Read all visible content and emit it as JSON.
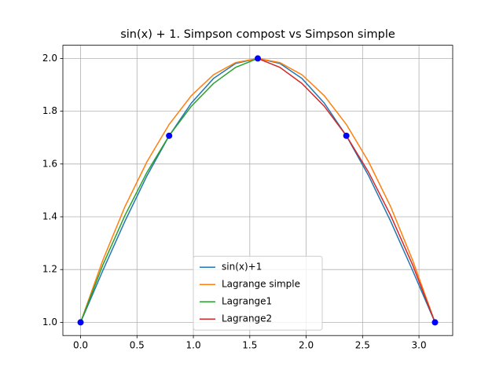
{
  "chart_data": {
    "type": "line",
    "title": "sin(x) + 1. Simpson compost vs Simpson simple",
    "xlim": [
      -0.157,
      3.299
    ],
    "ylim": [
      0.95,
      2.05
    ],
    "xticks": [
      {
        "value": 0,
        "label": "0.0"
      },
      {
        "value": 0.5,
        "label": "0.5"
      },
      {
        "value": 1,
        "label": "1.0"
      },
      {
        "value": 1.5,
        "label": "1.5"
      },
      {
        "value": 2,
        "label": "2.0"
      },
      {
        "value": 2.5,
        "label": "2.5"
      },
      {
        "value": 3,
        "label": "3.0"
      }
    ],
    "yticks": [
      {
        "value": 1,
        "label": "1.0"
      },
      {
        "value": 1.2,
        "label": "1.2"
      },
      {
        "value": 1.4,
        "label": "1.4"
      },
      {
        "value": 1.6,
        "label": "1.6"
      },
      {
        "value": 1.8,
        "label": "1.8"
      },
      {
        "value": 2,
        "label": "2.0"
      }
    ],
    "grid": true,
    "legend": "lower center",
    "series": [
      {
        "name": "sin(x)+1",
        "color": "#1f77b4",
        "x": [
          0,
          0.196,
          0.393,
          0.589,
          0.785,
          0.982,
          1.178,
          1.374,
          1.571,
          1.767,
          1.963,
          2.16,
          2.356,
          2.553,
          2.749,
          2.945,
          3.142
        ],
        "values": [
          1,
          1.195,
          1.383,
          1.556,
          1.707,
          1.831,
          1.924,
          1.981,
          2,
          1.981,
          1.924,
          1.831,
          1.707,
          1.556,
          1.383,
          1.195,
          1
        ]
      },
      {
        "name": "Lagrange simple",
        "color": "#ff7f0e",
        "x": [
          0,
          0.196,
          0.393,
          0.589,
          0.785,
          0.982,
          1.178,
          1.374,
          1.571,
          1.767,
          1.963,
          2.16,
          2.356,
          2.553,
          2.749,
          2.945,
          3.142
        ],
        "values": [
          1,
          1.234,
          1.438,
          1.609,
          1.75,
          1.859,
          1.938,
          1.984,
          2,
          1.984,
          1.938,
          1.859,
          1.75,
          1.609,
          1.438,
          1.234,
          1
        ]
      },
      {
        "name": "Lagrange1",
        "color": "#2ca02c",
        "x": [
          0,
          0.196,
          0.393,
          0.589,
          0.785,
          0.982,
          1.178,
          1.374,
          1.571
        ],
        "values": [
          1,
          1.216,
          1.405,
          1.569,
          1.707,
          1.819,
          1.905,
          1.966,
          2
        ]
      },
      {
        "name": "Lagrange2",
        "color": "#d62728",
        "x": [
          1.571,
          1.767,
          1.963,
          2.16,
          2.356,
          2.553,
          2.749,
          2.945,
          3.142
        ],
        "values": [
          2,
          1.966,
          1.905,
          1.819,
          1.707,
          1.569,
          1.405,
          1.216,
          1
        ]
      }
    ],
    "points": {
      "color": "#0000ff",
      "x": [
        0,
        0.785,
        1.571,
        2.356,
        3.142
      ],
      "values": [
        1,
        1.707,
        2,
        1.707,
        1
      ]
    }
  }
}
